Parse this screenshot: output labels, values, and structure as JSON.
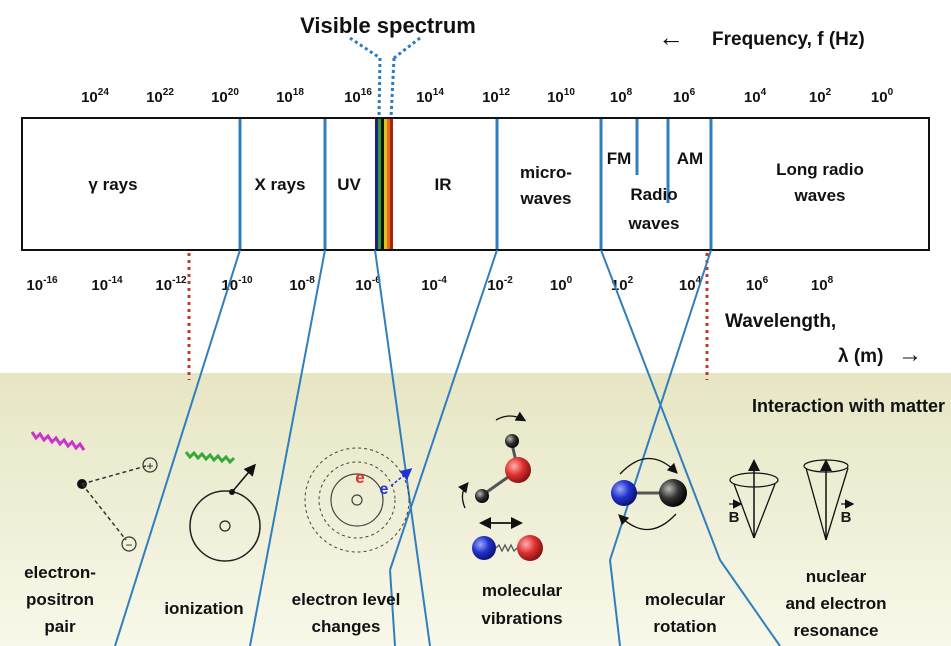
{
  "title": "Visible spectrum",
  "frequency_axis": {
    "label": "Frequency, f (Hz)",
    "arrow": "←",
    "ticks": [
      {
        "base": "10",
        "exp": "24"
      },
      {
        "base": "10",
        "exp": "22"
      },
      {
        "base": "10",
        "exp": "20"
      },
      {
        "base": "10",
        "exp": "18"
      },
      {
        "base": "10",
        "exp": "16"
      },
      {
        "base": "10",
        "exp": "14"
      },
      {
        "base": "10",
        "exp": "12"
      },
      {
        "base": "10",
        "exp": "10"
      },
      {
        "base": "10",
        "exp": "8"
      },
      {
        "base": "10",
        "exp": "6"
      },
      {
        "base": "10",
        "exp": "4"
      },
      {
        "base": "10",
        "exp": "2"
      },
      {
        "base": "10",
        "exp": "0"
      }
    ]
  },
  "wavelength_axis": {
    "label_line1": "Wavelength,",
    "label_line2": "λ (m)",
    "arrow": "→",
    "ticks": [
      {
        "base": "10",
        "exp": "-16"
      },
      {
        "base": "10",
        "exp": "-14"
      },
      {
        "base": "10",
        "exp": "-12"
      },
      {
        "base": "10",
        "exp": "-10"
      },
      {
        "base": "10",
        "exp": "-8"
      },
      {
        "base": "10",
        "exp": "-6"
      },
      {
        "base": "10",
        "exp": "-4"
      },
      {
        "base": "10",
        "exp": "-2"
      },
      {
        "base": "10",
        "exp": "0"
      },
      {
        "base": "10",
        "exp": "2"
      },
      {
        "base": "10",
        "exp": "4"
      },
      {
        "base": "10",
        "exp": "6"
      },
      {
        "base": "10",
        "exp": "8"
      }
    ]
  },
  "bands": {
    "gamma": "γ rays",
    "xrays": "X rays",
    "uv": "UV",
    "ir": "IR",
    "micro_1": "micro-",
    "micro_2": "waves",
    "fm": "FM",
    "am": "AM",
    "radio_1": "Radio",
    "radio_2": "waves",
    "long_1": "Long radio",
    "long_2": "waves"
  },
  "interaction": {
    "heading": "Interaction with matter",
    "processes": [
      {
        "lines": [
          "electron-",
          "positron",
          "pair"
        ]
      },
      {
        "lines": [
          "ionization"
        ]
      },
      {
        "lines": [
          "electron level",
          "changes"
        ]
      },
      {
        "lines": [
          "molecular",
          "vibrations"
        ]
      },
      {
        "lines": [
          "molecular",
          "rotation"
        ]
      },
      {
        "lines": [
          "nuclear",
          "and electron",
          "resonance"
        ]
      }
    ],
    "symbols": {
      "plus": "+",
      "minus": "−",
      "electron": "e",
      "field": "B"
    }
  },
  "colors": {
    "band_separator": "#2f7fbf",
    "dotted_blue": "#2a7bbf",
    "dotted_red": "#c0392b",
    "matter_panel": "#f0f0d8",
    "photon_gamma": "#cc33cc",
    "photon_xray": "#33aa33",
    "atom_red": "#e03030",
    "atom_blue": "#2233cc",
    "atom_black": "#222222"
  }
}
